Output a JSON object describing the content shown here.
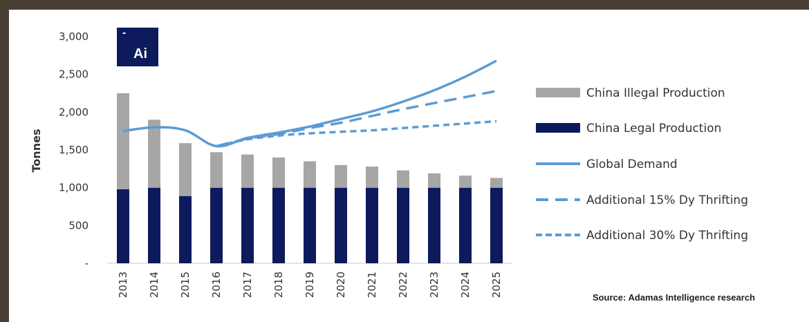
{
  "logo": {
    "text": "Ai",
    "mark": "-",
    "background": "#0d1a5c"
  },
  "source_note": "Source: Adamas Intelligence research",
  "colors": {
    "illegal": "#a6a6a6",
    "legal": "#0d1a5c",
    "demand": "#5b9bd5"
  },
  "chart_data": {
    "type": "bar",
    "categories": [
      "2013",
      "2014",
      "2015",
      "2016",
      "2017",
      "2018",
      "2019",
      "2020",
      "2021",
      "2022",
      "2023",
      "2024",
      "2025"
    ],
    "ylabel": "Tonnes",
    "ylim": [
      0,
      3000
    ],
    "yticks": [
      0,
      500,
      1000,
      1500,
      2000,
      2500,
      3000
    ],
    "ytick_labels": [
      "-",
      "500",
      "1,000",
      "1,500",
      "2,000",
      "2,500",
      "3,000"
    ],
    "legend_position": "right",
    "series": [
      {
        "name": "China Illegal Production",
        "kind": "stacked-bar",
        "values": [
          1270,
          900,
          700,
          470,
          440,
          400,
          350,
          300,
          280,
          230,
          190,
          160,
          130
        ]
      },
      {
        "name": "China Legal Production",
        "kind": "stacked-bar",
        "values": [
          980,
          1000,
          890,
          1000,
          1000,
          1000,
          1000,
          1000,
          1000,
          1000,
          1000,
          1000,
          1000
        ]
      },
      {
        "name": "Global Demand",
        "kind": "line",
        "style": "solid",
        "values": [
          1750,
          1800,
          1760,
          1550,
          1660,
          1730,
          1810,
          1910,
          2010,
          2140,
          2290,
          2470,
          2680
        ]
      },
      {
        "name": "Additional 15% Dy Thrifting",
        "kind": "line",
        "style": "long-dash",
        "values": [
          null,
          null,
          null,
          1550,
          1650,
          1710,
          1790,
          1860,
          1950,
          2040,
          2120,
          2200,
          2280
        ]
      },
      {
        "name": "Additional 30% Dy Thrifting",
        "kind": "line",
        "style": "short-dash",
        "values": [
          null,
          null,
          null,
          1550,
          1640,
          1690,
          1720,
          1740,
          1760,
          1790,
          1820,
          1850,
          1880
        ]
      }
    ]
  }
}
